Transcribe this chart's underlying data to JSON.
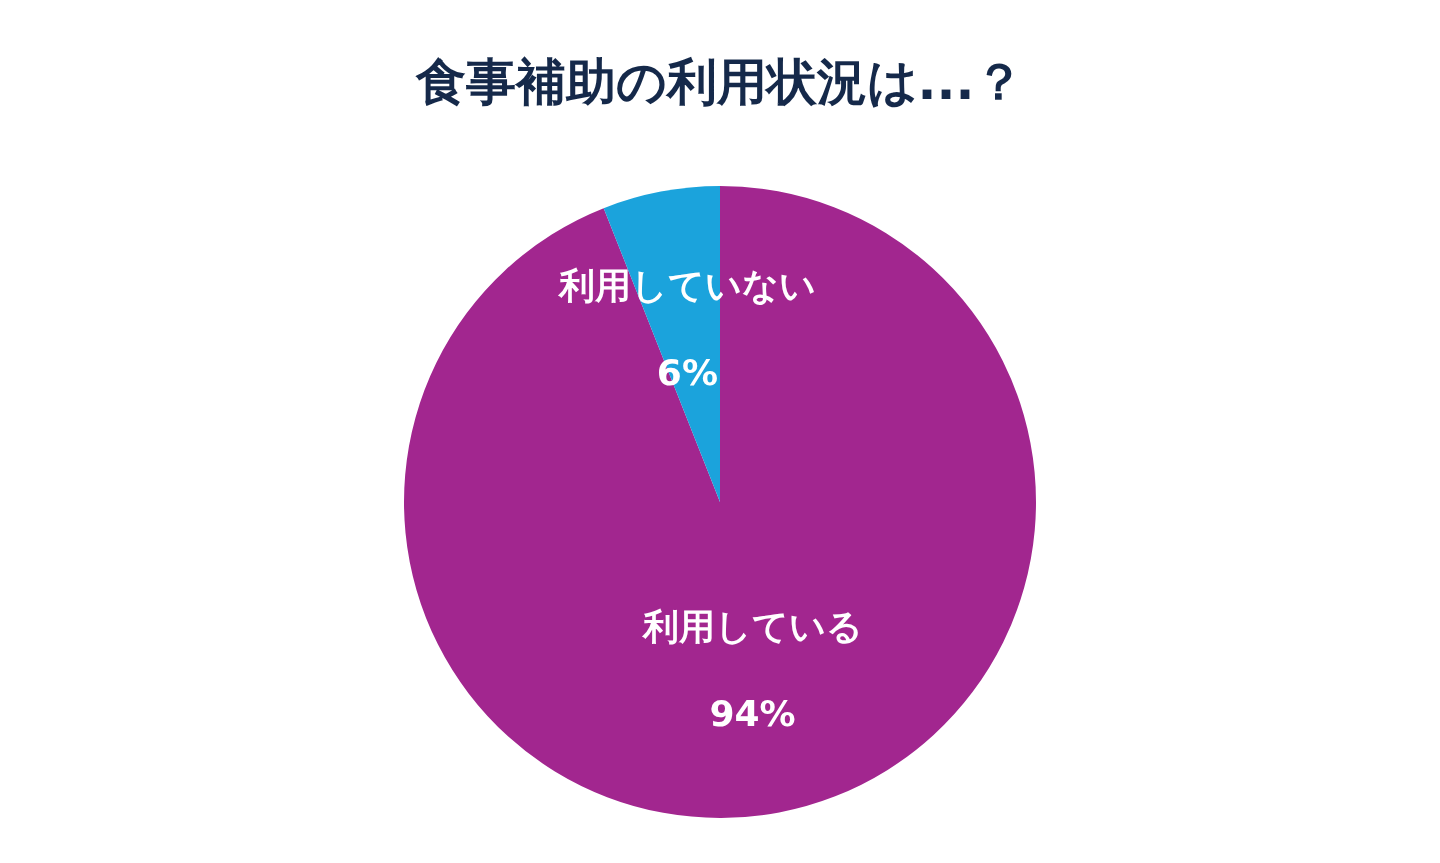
{
  "chart_data": {
    "type": "pie",
    "title": "食事補助の利用状況は...？",
    "categories": [
      "利用している",
      "利用していない"
    ],
    "values": [
      94,
      6
    ],
    "colors": [
      "#a2268f",
      "#1ba3dc"
    ],
    "value_labels": [
      "94%",
      "6%"
    ],
    "legend": false
  }
}
